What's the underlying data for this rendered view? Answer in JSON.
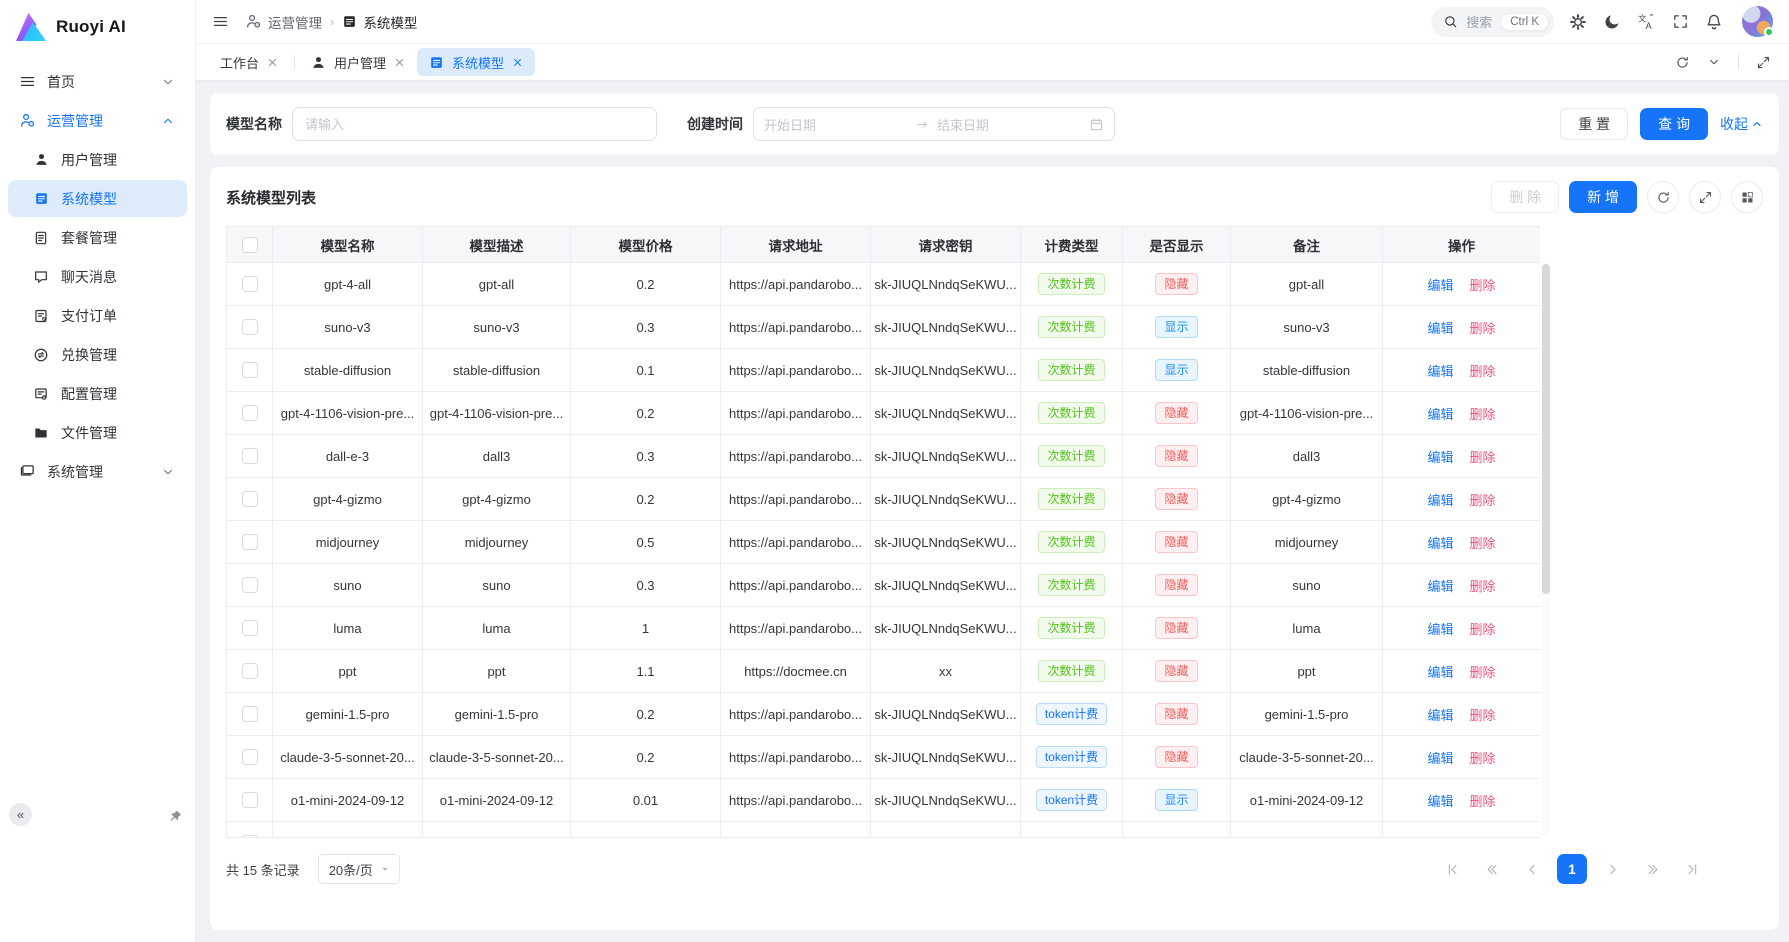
{
  "colors": {
    "primary": "#1574f7",
    "primary-soft": "#ddebfb",
    "page-bg": "#f0f2f5",
    "green": "#52c41a",
    "red-badge": "#f15f5f",
    "blue-badge": "#1890ff",
    "pink": "#f0517c"
  },
  "brand": {
    "name": "Ruoyi AI"
  },
  "header": {
    "breadcrumb": [
      {
        "icon": "user-cog",
        "label": "运营管理"
      },
      {
        "icon": "list",
        "label": "系统模型"
      }
    ],
    "search": {
      "placeholder": "搜索",
      "shortcut": "Ctrl K"
    },
    "actions": [
      {
        "icon": "settings"
      },
      {
        "icon": "moon"
      },
      {
        "icon": "translate"
      },
      {
        "icon": "fullscreen"
      },
      {
        "icon": "bell"
      }
    ]
  },
  "tabbar": {
    "tabs": [
      {
        "label": "工作台",
        "active": false
      },
      {
        "label": "用户管理",
        "icon": "user",
        "active": false
      },
      {
        "label": "系统模型",
        "icon": "list",
        "active": true
      }
    ],
    "controls": [
      {
        "icon": "refresh"
      },
      {
        "icon": "chevron-down"
      },
      {
        "icon": "expand"
      }
    ]
  },
  "sidebar": {
    "items": [
      {
        "label": "首页",
        "icon": "menu",
        "chevron": "down",
        "level": 0
      },
      {
        "label": "运营管理",
        "icon": "user-cog",
        "chevron": "up",
        "level": 0,
        "active": true
      },
      {
        "label": "用户管理",
        "icon": "user",
        "level": 1
      },
      {
        "label": "系统模型",
        "icon": "list",
        "level": 1,
        "selected": true
      },
      {
        "label": "套餐管理",
        "icon": "doc",
        "level": 1
      },
      {
        "label": "聊天消息",
        "icon": "chat",
        "level": 1
      },
      {
        "label": "支付订单",
        "icon": "receipt",
        "level": 1
      },
      {
        "label": "兑换管理",
        "icon": "exchange",
        "level": 1
      },
      {
        "label": "配置管理",
        "icon": "config",
        "level": 1
      },
      {
        "label": "文件管理",
        "icon": "folder",
        "level": 1
      },
      {
        "label": "系统管理",
        "icon": "monitor",
        "chevron": "down",
        "level": 0
      }
    ]
  },
  "filter": {
    "model_name_label": "模型名称",
    "model_name_placeholder": "请输入",
    "created_label": "创建时间",
    "start_placeholder": "开始日期",
    "end_placeholder": "结束日期",
    "reset_label": "重 置",
    "query_label": "查 询",
    "collapse_label": "收起"
  },
  "table": {
    "title": "系统模型列表",
    "toolbar": {
      "delete_label": "删 除",
      "add_label": "新 增",
      "icons": [
        {
          "icon": "refresh"
        },
        {
          "icon": "expand-arrows"
        },
        {
          "icon": "grid"
        }
      ]
    },
    "columns": [
      "模型名称",
      "模型描述",
      "模型价格",
      "请求地址",
      "请求密钥",
      "计费类型",
      "是否显示",
      "备注",
      "操作"
    ],
    "badge_labels": {
      "count": "次数计费",
      "token": "token计费",
      "hidden": "隐藏",
      "shown": "显示"
    },
    "action_labels": {
      "edit": "编辑",
      "delete": "删除"
    },
    "rows": [
      {
        "name": "gpt-4-all",
        "desc": "gpt-all",
        "price": "0.2",
        "url": "https://api.pandarobo...",
        "key": "sk-JIUQLNndqSeKWU...",
        "billing": "count",
        "visible": "hidden",
        "remark": "gpt-all"
      },
      {
        "name": "suno-v3",
        "desc": "suno-v3",
        "price": "0.3",
        "url": "https://api.pandarobo...",
        "key": "sk-JIUQLNndqSeKWU...",
        "billing": "count",
        "visible": "shown",
        "remark": "suno-v3"
      },
      {
        "name": "stable-diffusion",
        "desc": "stable-diffusion",
        "price": "0.1",
        "url": "https://api.pandarobo...",
        "key": "sk-JIUQLNndqSeKWU...",
        "billing": "count",
        "visible": "shown",
        "remark": "stable-diffusion"
      },
      {
        "name": "gpt-4-1106-vision-pre...",
        "desc": "gpt-4-1106-vision-pre...",
        "price": "0.2",
        "url": "https://api.pandarobo...",
        "key": "sk-JIUQLNndqSeKWU...",
        "billing": "count",
        "visible": "hidden",
        "remark": "gpt-4-1106-vision-pre..."
      },
      {
        "name": "dall-e-3",
        "desc": "dall3",
        "price": "0.3",
        "url": "https://api.pandarobo...",
        "key": "sk-JIUQLNndqSeKWU...",
        "billing": "count",
        "visible": "hidden",
        "remark": "dall3"
      },
      {
        "name": "gpt-4-gizmo",
        "desc": "gpt-4-gizmo",
        "price": "0.2",
        "url": "https://api.pandarobo...",
        "key": "sk-JIUQLNndqSeKWU...",
        "billing": "count",
        "visible": "hidden",
        "remark": "gpt-4-gizmo"
      },
      {
        "name": "midjourney",
        "desc": "midjourney",
        "price": "0.5",
        "url": "https://api.pandarobo...",
        "key": "sk-JIUQLNndqSeKWU...",
        "billing": "count",
        "visible": "hidden",
        "remark": "midjourney"
      },
      {
        "name": "suno",
        "desc": "suno",
        "price": "0.3",
        "url": "https://api.pandarobo...",
        "key": "sk-JIUQLNndqSeKWU...",
        "billing": "count",
        "visible": "hidden",
        "remark": "suno"
      },
      {
        "name": "luma",
        "desc": "luma",
        "price": "1",
        "url": "https://api.pandarobo...",
        "key": "sk-JIUQLNndqSeKWU...",
        "billing": "count",
        "visible": "hidden",
        "remark": "luma"
      },
      {
        "name": "ppt",
        "desc": "ppt",
        "price": "1.1",
        "url": "https://docmee.cn",
        "key": "xx",
        "billing": "count",
        "visible": "hidden",
        "remark": "ppt"
      },
      {
        "name": "gemini-1.5-pro",
        "desc": "gemini-1.5-pro",
        "price": "0.2",
        "url": "https://api.pandarobo...",
        "key": "sk-JIUQLNndqSeKWU...",
        "billing": "token",
        "visible": "hidden",
        "remark": "gemini-1.5-pro"
      },
      {
        "name": "claude-3-5-sonnet-20...",
        "desc": "claude-3-5-sonnet-20...",
        "price": "0.2",
        "url": "https://api.pandarobo...",
        "key": "sk-JIUQLNndqSeKWU...",
        "billing": "token",
        "visible": "hidden",
        "remark": "claude-3-5-sonnet-20..."
      },
      {
        "name": "o1-mini-2024-09-12",
        "desc": "o1-mini-2024-09-12",
        "price": "0.01",
        "url": "https://api.pandarobo...",
        "key": "sk-JIUQLNndqSeKWU...",
        "billing": "token",
        "visible": "shown",
        "remark": "o1-mini-2024-09-12"
      }
    ]
  },
  "footer": {
    "total": "共 15 条记录",
    "page_size": "20条/页",
    "page": "1"
  }
}
